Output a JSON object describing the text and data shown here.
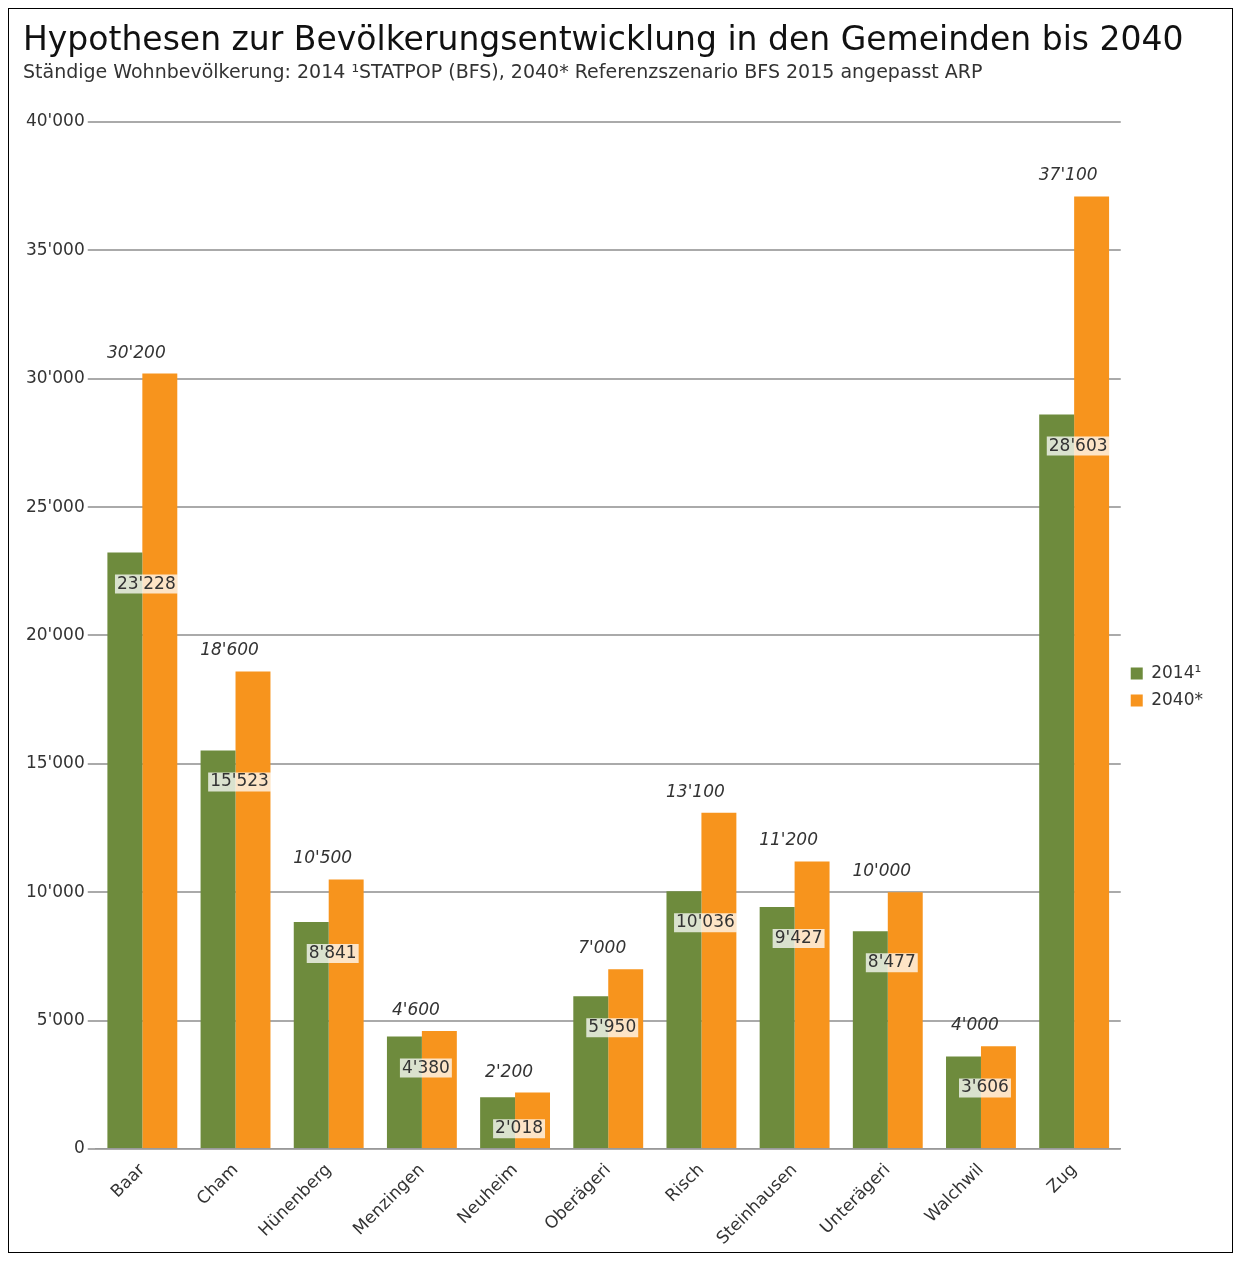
{
  "chart_data": {
    "type": "bar",
    "title": "Hypothesen zur Bevölkerungsentwicklung in den Gemeinden bis 2040",
    "subtitle": "Ständige Wohnbevölkerung: 2014 ¹STATPOP (BFS), 2040* Referenzszenario BFS 2015 angepasst ARP",
    "categories": [
      "Baar",
      "Cham",
      "Hünenberg",
      "Menzingen",
      "Neuheim",
      "Oberägeri",
      "Risch",
      "Steinhausen",
      "Unterägeri",
      "Walchwil",
      "Zug"
    ],
    "series": [
      {
        "name": "2014¹",
        "color": "#6e8b3d",
        "values": [
          23228,
          15523,
          8841,
          4380,
          2018,
          5950,
          10036,
          9427,
          8477,
          3606,
          28603
        ],
        "value_labels": [
          "23'228",
          "15'523",
          "8'841",
          "4'380",
          "2'018",
          "5'950",
          "10'036",
          "9'427",
          "8'477",
          "3'606",
          "28'603"
        ]
      },
      {
        "name": "2040*",
        "color": "#f7941d",
        "values": [
          30200,
          18600,
          10500,
          4600,
          2200,
          7000,
          13100,
          11200,
          10000,
          4000,
          37100
        ],
        "value_labels": [
          "30'200",
          "18'600",
          "10'500",
          "4'600",
          "2'200",
          "7'000",
          "13'100",
          "11'200",
          "10'000",
          "4'000",
          "37'100"
        ]
      }
    ],
    "ylim": [
      0,
      40000
    ],
    "yticks": [
      0,
      {
        "value": 5000,
        "label": "5'000"
      },
      {
        "value": 10000,
        "label": "10'000"
      },
      {
        "value": 15000,
        "label": "15'000"
      },
      {
        "value": 20000,
        "label": "20'000"
      },
      {
        "value": 25000,
        "label": "25'000"
      },
      {
        "value": 30000,
        "label": "30'000"
      },
      {
        "value": 35000,
        "label": "35'000"
      },
      {
        "value": 40000,
        "label": "40'000"
      }
    ],
    "grid": "y",
    "legend": "right"
  }
}
